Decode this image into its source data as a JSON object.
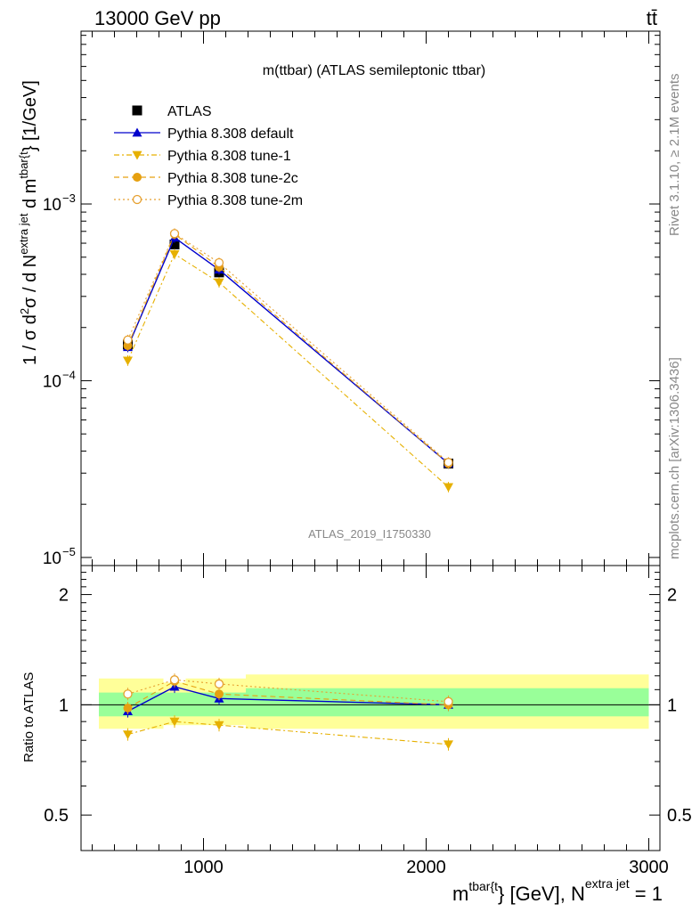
{
  "header": {
    "left_label": "13000 GeV pp",
    "right_label": "tt̄"
  },
  "side_labels": {
    "rivet": "Rivet 3.1.10, ≥ 2.1M events",
    "mcplots": "mcplots.cern.ch [arXiv:1306.3436]"
  },
  "chart_data": [
    {
      "type": "scatter",
      "panel": "main",
      "title": "m(ttbar) (ATLAS semileptonic ttbar)",
      "watermark": "ATLAS_2019_I1750330",
      "ylabel_parts": [
        "1 / σ d",
        "2",
        "σ / d N",
        "extra jet",
        " d m",
        "tbar{t",
        "} [1/GeV]"
      ],
      "xlim": [
        450,
        3050
      ],
      "ylim": [
        9e-06,
        0.0095
      ],
      "yscale": "log",
      "y_ticks": [
        {
          "value": 1e-05,
          "label": "10",
          "exp": "−5"
        },
        {
          "value": 0.0001,
          "label": "10",
          "exp": "−4"
        },
        {
          "value": 0.001,
          "label": "10",
          "exp": "−3"
        }
      ],
      "x": [
        660,
        870,
        1070,
        2100
      ],
      "series": [
        {
          "name": "ATLAS",
          "color": "#000000",
          "style": "data",
          "marker": "square",
          "values": [
            0.00016,
            0.00059,
            0.00041,
            3.4e-05
          ]
        },
        {
          "name": "Pythia 8.308 default",
          "color": "#0000cc",
          "style": "solid",
          "marker": "triangle-up",
          "values": [
            0.000155,
            0.000645,
            0.000425,
            3.4e-05
          ]
        },
        {
          "name": "Pythia 8.308 tune-1",
          "color": "#e6b000",
          "style": "dashdot",
          "marker": "triangle-down",
          "values": [
            0.00013,
            0.00052,
            0.00036,
            2.5e-05
          ]
        },
        {
          "name": "Pythia 8.308 tune-2c",
          "color": "#e6a010",
          "style": "dashed",
          "marker": "circle",
          "values": [
            0.000158,
            0.000675,
            0.00044,
            3.4e-05
          ]
        },
        {
          "name": "Pythia 8.308 tune-2m",
          "color": "#e6a030",
          "style": "dotted",
          "marker": "open-circle",
          "values": [
            0.00017,
            0.00068,
            0.000465,
            3.45e-05
          ]
        }
      ]
    },
    {
      "type": "scatter",
      "panel": "ratio",
      "ylabel": "Ratio to ATLAS",
      "xlabel_parts": [
        "m",
        "tbar{t",
        "} [GeV], N",
        "extra jet",
        " = 1"
      ],
      "xlim": [
        450,
        3050
      ],
      "ylim": [
        0.4,
        2.4
      ],
      "yscale": "log",
      "x_ticks": [
        1000,
        2000,
        3000
      ],
      "y_ticks": [
        0.5,
        1,
        2
      ],
      "x": [
        660,
        870,
        1070,
        2100
      ],
      "bands": [
        {
          "x_from": 530,
          "x_to": 820,
          "yellow": [
            0.86,
            1.18
          ],
          "green": [
            0.93,
            1.08
          ]
        },
        {
          "x_from": 820,
          "x_to": 920,
          "yellow": [
            0.88,
            1.15
          ],
          "green": [
            0.93,
            1.08
          ]
        },
        {
          "x_from": 920,
          "x_to": 1190,
          "yellow": [
            0.88,
            1.18
          ],
          "green": [
            0.93,
            1.08
          ]
        },
        {
          "x_from": 1190,
          "x_to": 3000,
          "yellow": [
            0.86,
            1.21
          ],
          "green": [
            0.93,
            1.11
          ]
        }
      ],
      "series": [
        {
          "name": "Pythia 8.308 default",
          "values": [
            0.96,
            1.12,
            1.04,
            1.0
          ]
        },
        {
          "name": "Pythia 8.308 tune-1",
          "values": [
            0.83,
            0.9,
            0.88,
            0.78
          ]
        },
        {
          "name": "Pythia 8.308 tune-2c",
          "values": [
            0.98,
            1.16,
            1.07,
            1.0
          ]
        },
        {
          "name": "Pythia 8.308 tune-2m",
          "values": [
            1.07,
            1.17,
            1.14,
            1.02
          ]
        }
      ]
    }
  ]
}
